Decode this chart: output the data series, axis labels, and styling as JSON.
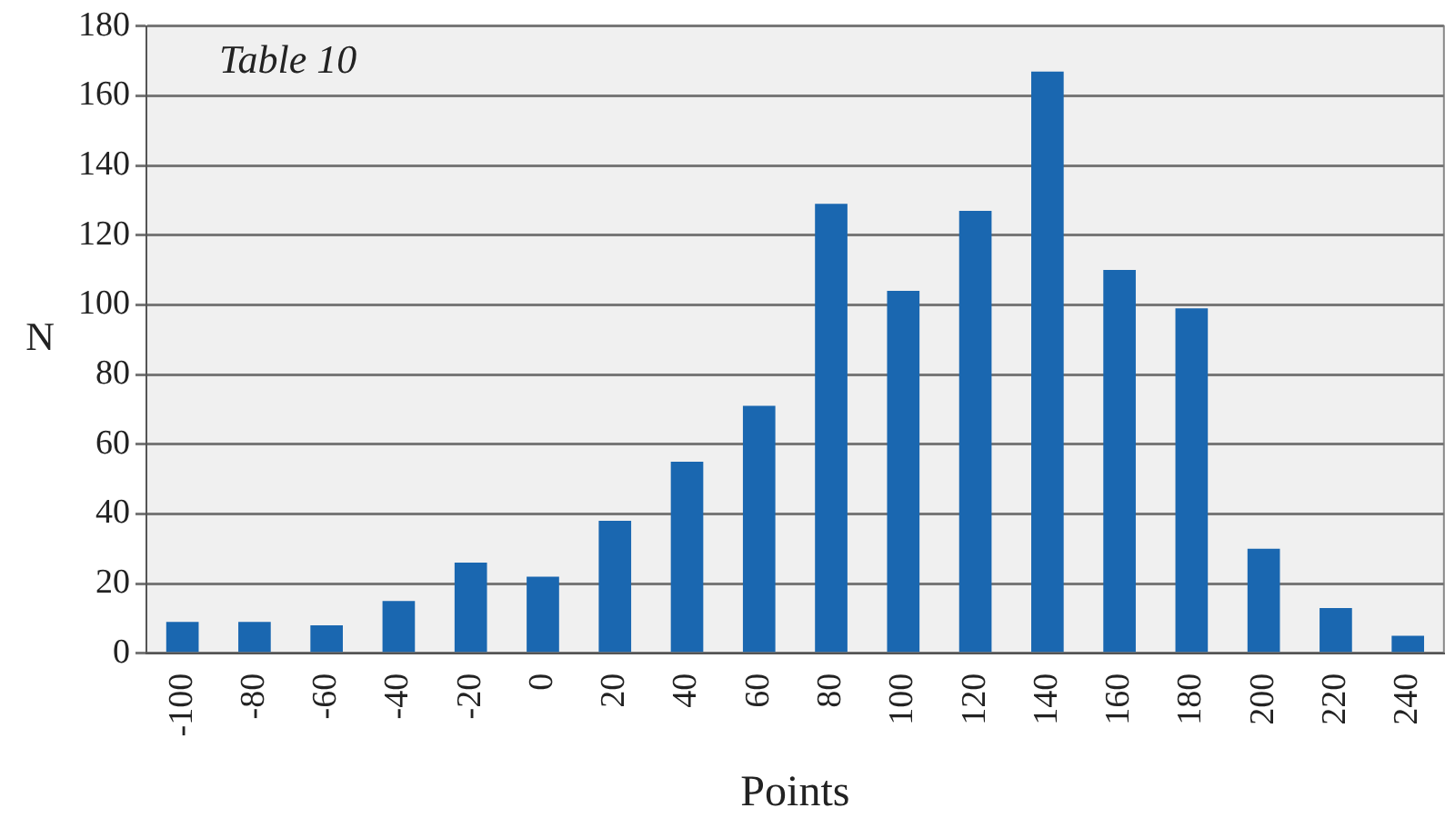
{
  "chart_data": {
    "type": "bar",
    "title": "Table 10",
    "xlabel": "Points",
    "ylabel": "N",
    "categories": [
      "-100",
      "-80",
      "-60",
      "-40",
      "-20",
      "0",
      "20",
      "40",
      "60",
      "80",
      "100",
      "120",
      "140",
      "160",
      "180",
      "200",
      "220",
      "240"
    ],
    "values": [
      9,
      9,
      8,
      15,
      26,
      22,
      38,
      55,
      71,
      129,
      104,
      127,
      167,
      110,
      99,
      30,
      13,
      5
    ],
    "color": "#1a67b0",
    "ylim": [
      0,
      180
    ],
    "yticks": [
      0,
      20,
      40,
      60,
      80,
      100,
      120,
      140,
      160,
      180
    ],
    "grid": "y",
    "legend": false
  }
}
